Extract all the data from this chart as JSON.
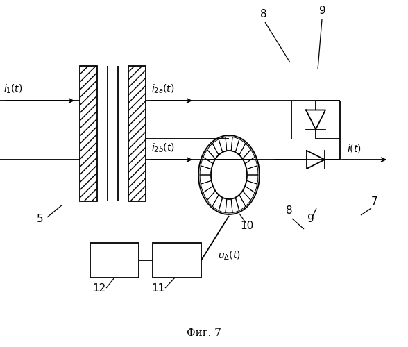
{
  "bg_color": "#ffffff",
  "line_color": "#000000",
  "fig_width": 5.88,
  "fig_height": 5.0,
  "dpi": 100,
  "caption": "Фиг. 7",
  "caption_fontsize": 11
}
